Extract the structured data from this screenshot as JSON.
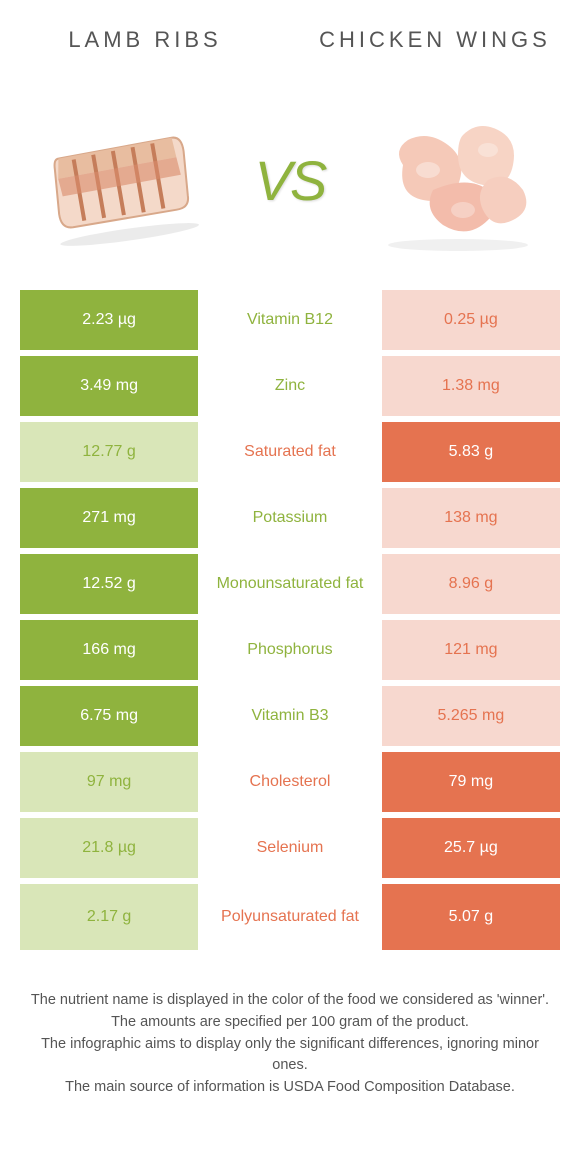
{
  "colors": {
    "left_primary": "#8fb33e",
    "left_muted": "#d9e6b8",
    "right_primary": "#e57350",
    "right_muted": "#f7d8cf",
    "text": "#555555",
    "white": "#ffffff"
  },
  "header": {
    "left_title": "LAMB RIBS",
    "right_title": "CHICKEN WINGS",
    "vs_label": "VS"
  },
  "rows": [
    {
      "nutrient": "Vitamin B12",
      "left": "2.23 µg",
      "right": "0.25 µg",
      "winner": "left"
    },
    {
      "nutrient": "Zinc",
      "left": "3.49 mg",
      "right": "1.38 mg",
      "winner": "left"
    },
    {
      "nutrient": "Saturated fat",
      "left": "12.77 g",
      "right": "5.83 g",
      "winner": "right"
    },
    {
      "nutrient": "Potassium",
      "left": "271 mg",
      "right": "138 mg",
      "winner": "left"
    },
    {
      "nutrient": "Monounsaturated fat",
      "left": "12.52 g",
      "right": "8.96 g",
      "winner": "left"
    },
    {
      "nutrient": "Phosphorus",
      "left": "166 mg",
      "right": "121 mg",
      "winner": "left"
    },
    {
      "nutrient": "Vitamin B3",
      "left": "6.75 mg",
      "right": "5.265 mg",
      "winner": "left"
    },
    {
      "nutrient": "Cholesterol",
      "left": "97 mg",
      "right": "79 mg",
      "winner": "right"
    },
    {
      "nutrient": "Selenium",
      "left": "21.8 µg",
      "right": "25.7 µg",
      "winner": "right"
    },
    {
      "nutrient": "Polyunsaturated fat",
      "left": "2.17 g",
      "right": "5.07 g",
      "winner": "right"
    }
  ],
  "footer": {
    "line1": "The nutrient name is displayed in the color of the food we considered as 'winner'.",
    "line2": "The amounts are specified per 100 gram of the product.",
    "line3": "The infographic aims to display only the significant differences, ignoring minor ones.",
    "line4": "The main source of information is USDA Food Composition Database."
  }
}
